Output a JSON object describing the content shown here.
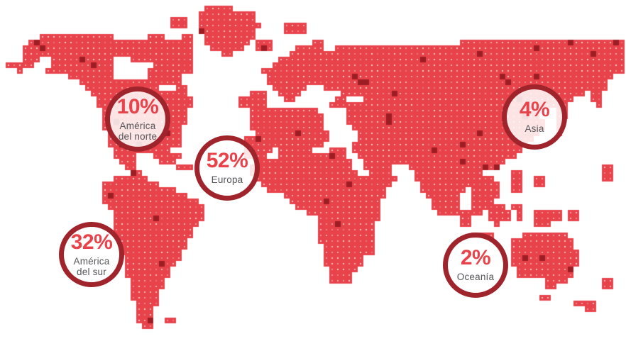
{
  "infographic": {
    "type": "world-dot-map-percentages",
    "regions": [
      {
        "id": "america-del-norte",
        "percent": "10%",
        "value": 10,
        "label_lines": [
          "América",
          "del norte"
        ]
      },
      {
        "id": "europa",
        "percent": "52%",
        "value": 52,
        "label_lines": [
          "Europa"
        ]
      },
      {
        "id": "asia",
        "percent": "4%",
        "value": 4,
        "label_lines": [
          "Asia"
        ]
      },
      {
        "id": "america-del-sur",
        "percent": "32%",
        "value": 32,
        "label_lines": [
          "América",
          "del sur"
        ]
      },
      {
        "id": "oceania",
        "percent": "2%",
        "value": 2,
        "label_lines": [
          "Oceanía"
        ]
      }
    ],
    "colors": {
      "background": "#ffffff",
      "map_red": "#e8434b",
      "map_dark_red": "#9c1d23",
      "map_dot_white": "#ffffff",
      "bubble_ring": "#9f242b",
      "bubble_fill": "rgba(255,255,255,0.85)",
      "percent_text": "#e8434b",
      "label_text": "#55565a"
    }
  }
}
